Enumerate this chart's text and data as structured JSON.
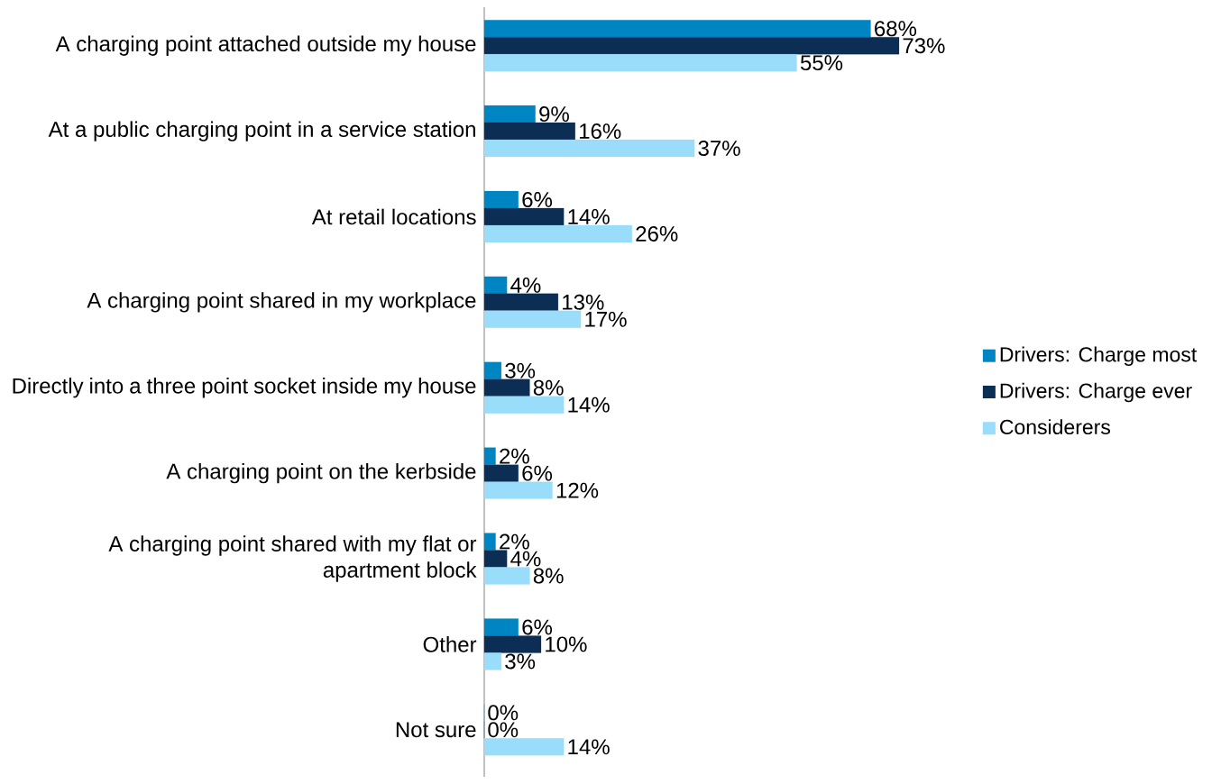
{
  "chart_data": {
    "type": "bar",
    "orientation": "horizontal",
    "legend": "right",
    "categories": [
      "A charging point attached outside my house",
      "At a public charging point in a service station",
      "At retail locations",
      "A charging point shared in my workplace",
      "Directly into a three point socket inside my house",
      "A charging point on the kerbside",
      "A charging point shared with my flat or apartment block",
      "Other",
      "Not sure"
    ],
    "series": [
      {
        "name": "Drivers: Charge most",
        "color": "#0085c3",
        "values": [
          68,
          9,
          6,
          4,
          3,
          2,
          2,
          6,
          0
        ],
        "value_labels": [
          "68%",
          "9%",
          "6%",
          "4%",
          "3%",
          "2%",
          "2%",
          "6%",
          "0%"
        ]
      },
      {
        "name": "Drivers: Charge ever",
        "color": "#0c2e55",
        "values": [
          73,
          16,
          14,
          13,
          8,
          6,
          4,
          10,
          0
        ],
        "value_labels": [
          "73%",
          "16%",
          "14%",
          "13%",
          "8%",
          "6%",
          "4%",
          "10%",
          "0%"
        ]
      },
      {
        "name": "Considerers",
        "color": "#99ddfb",
        "values": [
          55,
          37,
          26,
          17,
          14,
          12,
          8,
          3,
          14
        ],
        "value_labels": [
          "55%",
          "37%",
          "26%",
          "17%",
          "14%",
          "12%",
          "8%",
          "3%",
          "14%"
        ]
      }
    ]
  }
}
